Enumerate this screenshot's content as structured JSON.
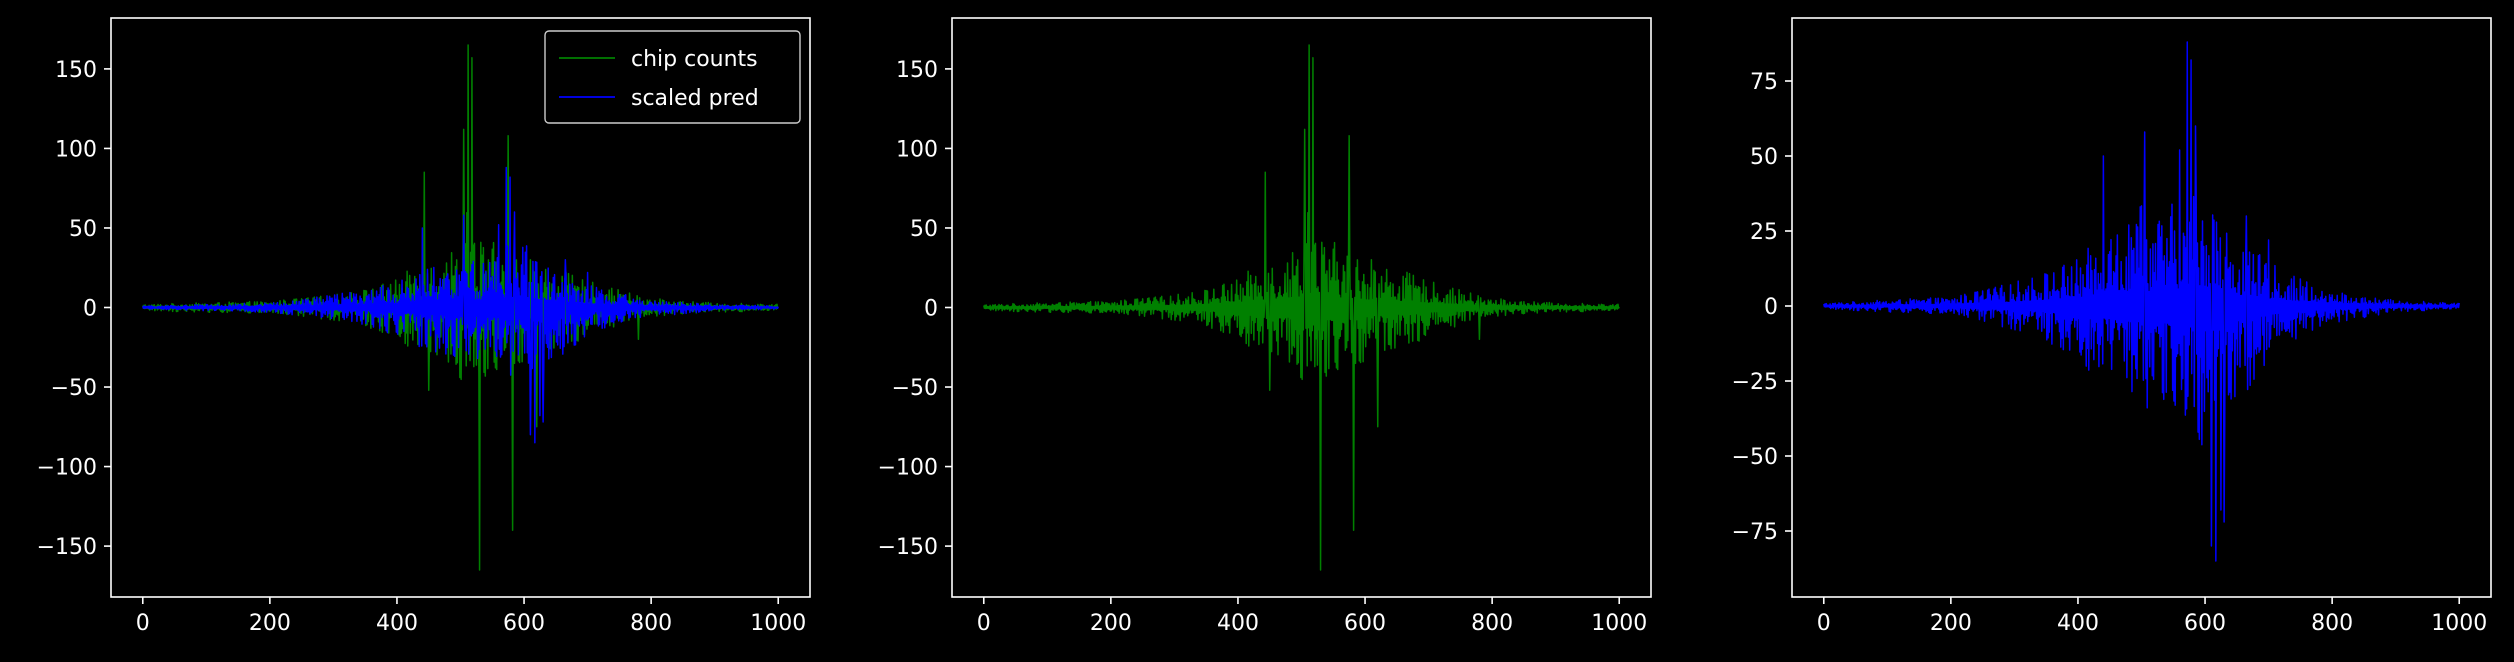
{
  "figure": {
    "background": "#000000",
    "axis_color": "#ffffff",
    "text_color": "#ffffff"
  },
  "chart_data": [
    {
      "type": "line",
      "title": "",
      "xlabel": "",
      "ylabel": "",
      "xlim": [
        -50,
        1050
      ],
      "ylim": [
        -182,
        182
      ],
      "xticks": [
        0,
        200,
        400,
        600,
        800,
        1000
      ],
      "yticks": [
        -150,
        -100,
        -50,
        0,
        50,
        100,
        150
      ],
      "grid": false,
      "legend": "top-right",
      "series": [
        {
          "name": "chip counts",
          "color": "#008000",
          "x_range": [
            0,
            1000
          ],
          "envelope_x": [
            0,
            100,
            200,
            300,
            350,
            400,
            440,
            480,
            500,
            510,
            520,
            530,
            560,
            580,
            600,
            640,
            680,
            720,
            760,
            800,
            850,
            900,
            1000
          ],
          "envelope_upper": [
            2,
            3,
            4,
            8,
            12,
            18,
            30,
            35,
            45,
            60,
            55,
            45,
            40,
            35,
            30,
            26,
            20,
            14,
            10,
            6,
            4,
            3,
            2
          ],
          "envelope_lower": [
            -2,
            -3,
            -4,
            -8,
            -12,
            -20,
            -30,
            -35,
            -45,
            -55,
            -55,
            -50,
            -45,
            -40,
            -35,
            -30,
            -22,
            -15,
            -10,
            -6,
            -4,
            -3,
            -2
          ],
          "peaks": [
            [
              443,
              85
            ],
            [
              450,
              -52
            ],
            [
              505,
              112
            ],
            [
              512,
              165
            ],
            [
              518,
              157
            ],
            [
              530,
              -165
            ],
            [
              575,
              108
            ],
            [
              582,
              -140
            ],
            [
              610,
              30
            ],
            [
              620,
              -75
            ],
            [
              780,
              -20
            ]
          ]
        },
        {
          "name": "scaled pred",
          "color": "#0000ff",
          "x_range": [
            0,
            1000
          ],
          "envelope_x": [
            0,
            100,
            200,
            300,
            350,
            400,
            440,
            480,
            500,
            520,
            540,
            560,
            580,
            600,
            620,
            640,
            680,
            720,
            760,
            800,
            850,
            900,
            1000
          ],
          "envelope_upper": [
            1,
            2,
            3,
            8,
            12,
            16,
            24,
            28,
            34,
            30,
            32,
            38,
            40,
            42,
            34,
            24,
            18,
            12,
            8,
            5,
            3,
            2,
            1
          ],
          "envelope_lower": [
            -1,
            -2,
            -3,
            -8,
            -12,
            -18,
            -26,
            -30,
            -36,
            -32,
            -36,
            -40,
            -44,
            -50,
            -55,
            -36,
            -24,
            -14,
            -9,
            -6,
            -4,
            -2,
            -1
          ],
          "peaks": [
            [
              440,
              50
            ],
            [
              505,
              58
            ],
            [
              560,
              52
            ],
            [
              572,
              88
            ],
            [
              578,
              82
            ],
            [
              585,
              60
            ],
            [
              610,
              -80
            ],
            [
              617,
              -85
            ],
            [
              625,
              -68
            ],
            [
              630,
              -72
            ],
            [
              665,
              30
            ],
            [
              700,
              22
            ],
            [
              760,
              8
            ]
          ]
        }
      ]
    },
    {
      "type": "line",
      "title": "",
      "xlabel": "",
      "ylabel": "",
      "xlim": [
        -50,
        1050
      ],
      "ylim": [
        -182,
        182
      ],
      "xticks": [
        0,
        200,
        400,
        600,
        800,
        1000
      ],
      "yticks": [
        -150,
        -100,
        -50,
        0,
        50,
        100,
        150
      ],
      "grid": false,
      "legend": "none",
      "series": [
        {
          "name": "",
          "color": "#008000",
          "x_range": [
            0,
            1000
          ],
          "envelope_x": [
            0,
            100,
            200,
            300,
            350,
            400,
            440,
            480,
            500,
            510,
            520,
            530,
            560,
            580,
            600,
            640,
            680,
            720,
            760,
            800,
            850,
            900,
            1000
          ],
          "envelope_upper": [
            2,
            3,
            4,
            8,
            12,
            18,
            30,
            35,
            45,
            60,
            55,
            45,
            40,
            35,
            30,
            26,
            20,
            14,
            10,
            6,
            4,
            3,
            2
          ],
          "envelope_lower": [
            -2,
            -3,
            -4,
            -8,
            -12,
            -20,
            -30,
            -35,
            -45,
            -55,
            -55,
            -50,
            -45,
            -40,
            -35,
            -30,
            -22,
            -15,
            -10,
            -6,
            -4,
            -3,
            -2
          ],
          "peaks": [
            [
              443,
              85
            ],
            [
              450,
              -52
            ],
            [
              505,
              112
            ],
            [
              512,
              165
            ],
            [
              518,
              157
            ],
            [
              530,
              -165
            ],
            [
              575,
              108
            ],
            [
              582,
              -140
            ],
            [
              610,
              30
            ],
            [
              620,
              -75
            ],
            [
              780,
              -20
            ]
          ]
        }
      ]
    },
    {
      "type": "line",
      "title": "",
      "xlabel": "",
      "ylabel": "",
      "xlim": [
        -50,
        1050
      ],
      "ylim": [
        -97,
        96
      ],
      "xticks": [
        0,
        200,
        400,
        600,
        800,
        1000
      ],
      "yticks": [
        -75,
        -50,
        -25,
        0,
        25,
        50,
        75
      ],
      "grid": false,
      "legend": "none",
      "series": [
        {
          "name": "",
          "color": "#0000ff",
          "x_range": [
            0,
            1000
          ],
          "envelope_x": [
            0,
            100,
            200,
            300,
            350,
            400,
            440,
            480,
            500,
            520,
            540,
            560,
            580,
            600,
            620,
            640,
            680,
            720,
            760,
            800,
            850,
            900,
            1000
          ],
          "envelope_upper": [
            1,
            2,
            3,
            8,
            12,
            16,
            24,
            28,
            34,
            30,
            32,
            38,
            40,
            42,
            34,
            24,
            18,
            12,
            8,
            5,
            3,
            2,
            1
          ],
          "envelope_lower": [
            -1,
            -2,
            -3,
            -8,
            -12,
            -18,
            -26,
            -30,
            -36,
            -32,
            -36,
            -40,
            -44,
            -50,
            -55,
            -36,
            -24,
            -14,
            -9,
            -6,
            -4,
            -2,
            -1
          ],
          "peaks": [
            [
              440,
              50
            ],
            [
              505,
              58
            ],
            [
              560,
              52
            ],
            [
              572,
              88
            ],
            [
              578,
              82
            ],
            [
              585,
              60
            ],
            [
              610,
              -80
            ],
            [
              617,
              -85
            ],
            [
              625,
              -68
            ],
            [
              630,
              -72
            ],
            [
              665,
              30
            ],
            [
              700,
              22
            ],
            [
              760,
              8
            ]
          ]
        }
      ]
    }
  ]
}
